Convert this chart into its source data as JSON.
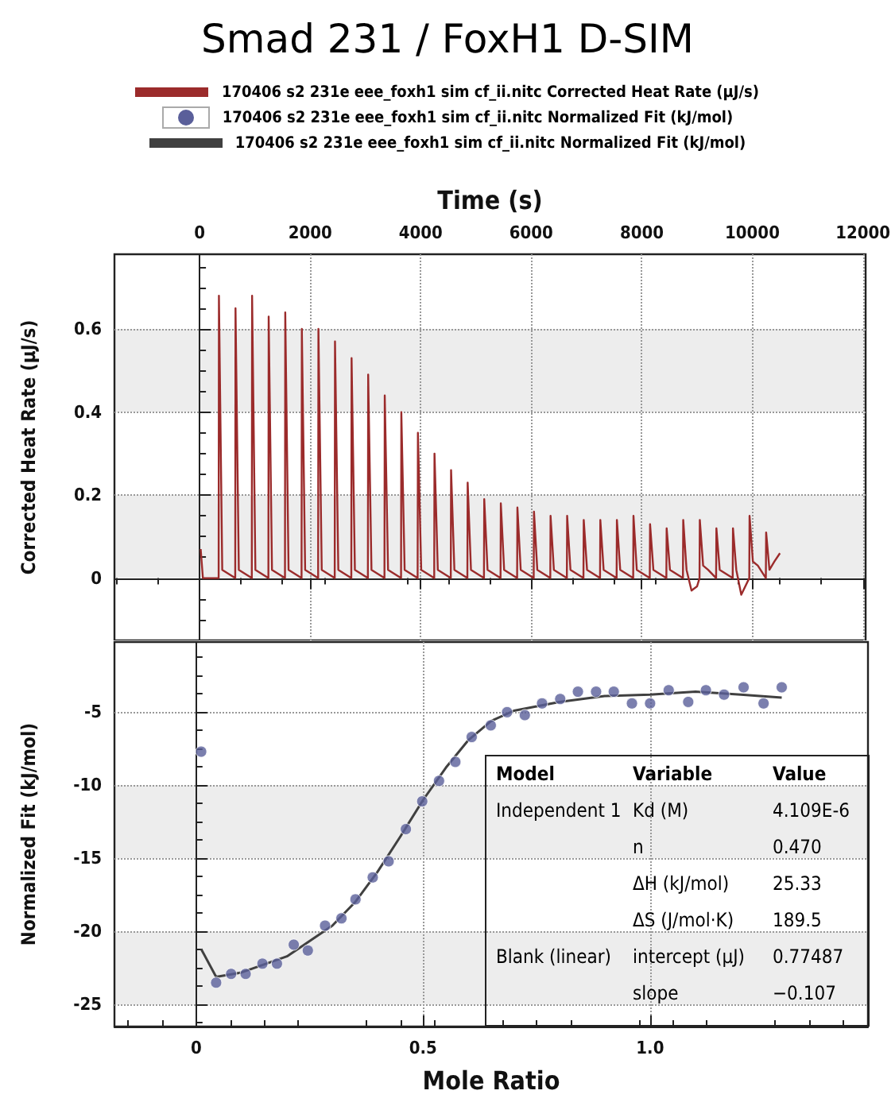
{
  "chart_data": [
    {
      "type": "line",
      "title": "Smad 231 / FoxH1 D-SIM",
      "xlabel": "Time (s)",
      "ylabel": "Corrected Heat Rate (μJ/s)",
      "x": [
        20,
        60,
        345,
        350,
        410,
        645,
        650,
        710,
        945,
        950,
        1010,
        1245,
        1250,
        1310,
        1545,
        1550,
        1610,
        1845,
        1850,
        1910,
        2145,
        2150,
        2210,
        2445,
        2450,
        2510,
        2745,
        2750,
        2810,
        3045,
        3050,
        3110,
        3345,
        3350,
        3410,
        3645,
        3650,
        3710,
        3945,
        3950,
        4010,
        4245,
        4250,
        4310,
        4545,
        4550,
        4610,
        4845,
        4850,
        4910,
        5145,
        5150,
        5210,
        5445,
        5450,
        5510,
        5745,
        5750,
        5810,
        6045,
        6050,
        6110,
        6345,
        6350,
        6410,
        6645,
        6650,
        6710,
        6945,
        6950,
        7010,
        7245,
        7250,
        7310,
        7545,
        7550,
        7610,
        7845,
        7850,
        7910,
        8145,
        8150,
        8210,
        8445,
        8450,
        8510,
        8745,
        8750,
        8810,
        8900,
        9000,
        9045,
        9050,
        9110,
        9200,
        9345,
        9350,
        9410,
        9645,
        9650,
        9710,
        9800,
        9945,
        9950,
        10010,
        10100,
        10245,
        10250,
        10310,
        10400,
        10500
      ],
      "series": [
        {
          "name": "170406 s2 231e eee_foxh1 sim cf_ii.nitc Corrected Heat Rate (μJ/s)",
          "color": "#9b2b2b",
          "values": [
            0.07,
            0,
            0,
            0.68,
            0.02,
            0,
            0.65,
            0.02,
            0,
            0.68,
            0.02,
            0,
            0.63,
            0.02,
            0,
            0.64,
            0.02,
            0,
            0.6,
            0.02,
            0,
            0.6,
            0.02,
            0,
            0.57,
            0.02,
            0,
            0.53,
            0.02,
            0,
            0.49,
            0.02,
            0,
            0.44,
            0.02,
            0,
            0.4,
            0.02,
            0,
            0.35,
            0.02,
            0,
            0.3,
            0.02,
            0,
            0.26,
            0.02,
            0,
            0.23,
            0.02,
            0,
            0.19,
            0.02,
            0,
            0.18,
            0.02,
            0,
            0.17,
            0.02,
            0,
            0.16,
            0.02,
            0,
            0.15,
            0.02,
            0,
            0.15,
            0.02,
            0,
            0.14,
            0.02,
            0,
            0.14,
            0.02,
            0,
            0.14,
            0.02,
            0,
            0.15,
            0.02,
            0,
            0.13,
            0.02,
            0,
            0.12,
            0.02,
            0,
            0.14,
            0.02,
            -0.03,
            -0.02,
            0,
            0.14,
            0.03,
            0.02,
            0,
            0.12,
            0.02,
            0,
            0.12,
            0.02,
            -0.04,
            0,
            0.15,
            0.04,
            0.03,
            0,
            0.11,
            0.02,
            0.04,
            0.06
          ]
        }
      ],
      "xlim": [
        -1540,
        12050
      ],
      "ylim": [
        -0.15,
        0.78
      ],
      "xticks": [
        0,
        2000,
        4000,
        6000,
        8000,
        10000,
        12000
      ],
      "yticks": [
        0,
        0.2,
        0.4,
        0.6
      ],
      "grid": true,
      "legend": "top",
      "marker": "none"
    },
    {
      "type": "scatter",
      "xlabel": "Mole Ratio",
      "ylabel": "Normalized Fit (kJ/mol)",
      "x": [
        0.011,
        0.044,
        0.077,
        0.109,
        0.146,
        0.178,
        0.215,
        0.246,
        0.284,
        0.32,
        0.351,
        0.389,
        0.424,
        0.462,
        0.498,
        0.535,
        0.571,
        0.607,
        0.649,
        0.685,
        0.724,
        0.762,
        0.802,
        0.841,
        0.881,
        0.92,
        0.96,
        1.0,
        1.041,
        1.084,
        1.123,
        1.163,
        1.206,
        1.25,
        1.29
      ],
      "series": [
        {
          "name": "170406 s2 231e eee_foxh1 sim cf_ii.nitc Normalized Fit (kJ/mol)",
          "color": "#5a5f9a",
          "values": [
            -7.7,
            -23.5,
            -22.9,
            -22.9,
            -22.2,
            -22.2,
            -20.9,
            -21.3,
            -19.6,
            -19.1,
            -17.8,
            -16.3,
            -15.2,
            -13.0,
            -11.1,
            -9.7,
            -8.4,
            -6.7,
            -5.9,
            -5.0,
            -5.2,
            -4.4,
            -4.1,
            -3.6,
            -3.6,
            -3.6,
            -4.4,
            -4.4,
            -3.5,
            -4.3,
            -3.5,
            -3.8,
            -3.3,
            -4.4,
            -3.3
          ]
        },
        {
          "name": "170406 s2 231e eee_foxh1 sim cf_ii.nitc Normalized Fit (kJ/mol)",
          "type": "line",
          "marker": "none",
          "color": "#404040",
          "x": [
            0.011,
            0.044,
            0.1,
            0.2,
            0.3,
            0.35,
            0.4,
            0.45,
            0.5,
            0.55,
            0.6,
            0.65,
            0.7,
            0.8,
            0.9,
            1.0,
            1.1,
            1.2,
            1.29
          ],
          "values": [
            -21.2,
            -23.1,
            -22.8,
            -21.7,
            -19.6,
            -18.0,
            -15.9,
            -13.5,
            -11.0,
            -8.8,
            -6.9,
            -5.6,
            -4.9,
            -4.3,
            -3.9,
            -3.8,
            -3.6,
            -3.8,
            -4.0
          ]
        }
      ],
      "xlim": [
        -0.18,
        1.48
      ],
      "ylim": [
        -26.5,
        -0.2
      ],
      "xticks": [
        0,
        0.5,
        {
          "value": 1,
          "label": "1.0"
        }
      ],
      "yticks": [
        -25,
        -20,
        -15,
        -10,
        -5
      ],
      "grid": true,
      "legend": "top",
      "marker": "circle",
      "annotations": [
        "Model",
        "Variable",
        "Value",
        "Independent 1",
        "Kd (M)",
        "4.109E-6",
        "n",
        "0.470",
        "ΔH (kJ/mol)",
        "25.33",
        "ΔS (J/mol·K)",
        "189.5",
        "Blank (linear)",
        "intercept (μJ)",
        "0.77487",
        "slope",
        "−0.107"
      ]
    }
  ]
}
